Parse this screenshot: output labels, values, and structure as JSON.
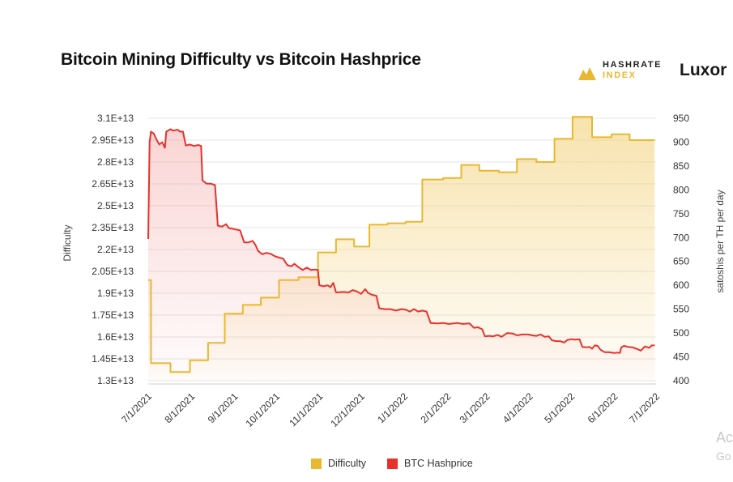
{
  "page": {
    "title": "Bitcoin Mining Difficulty vs Bitcoin Hashprice",
    "brand_line1": "HASHRATE",
    "brand_line2": "INDEX",
    "brand_logo": "hashrate-index-logo-icon",
    "brand_secondary": "Luxor",
    "watermark_line1": "Ac",
    "watermark_line2": "Go"
  },
  "chart_data": {
    "type": "line",
    "title": "Bitcoin Mining Difficulty vs Bitcoin Hashprice",
    "x_ticks": [
      "7/1/2021",
      "8/1/2021",
      "9/1/2021",
      "10/1/2021",
      "11/1/2021",
      "12/1/2021",
      "1/1/2022",
      "2/1/2022",
      "3/1/2022",
      "4/1/2022",
      "5/1/2022",
      "6/1/2022",
      "7/1/2022"
    ],
    "y_left": {
      "label": "Difficulty",
      "range": [
        13000000000000.0,
        31000000000000.0
      ],
      "ticks": [
        "1.3E+13",
        "1.45E+13",
        "1.6E+13",
        "1.75E+13",
        "1.9E+13",
        "2.05E+13",
        "2.2E+13",
        "2.35E+13",
        "2.5E+13",
        "2.65E+13",
        "2.8E+13",
        "2.95E+13",
        "3.1E+13"
      ]
    },
    "y_right": {
      "label": "satoshis per TH per day",
      "range": [
        400,
        950
      ],
      "ticks": [
        "400",
        "450",
        "500",
        "550",
        "600",
        "650",
        "700",
        "750",
        "800",
        "850",
        "900",
        "950"
      ]
    },
    "grid": true,
    "legend_position": "bottom-center",
    "series": [
      {
        "name": "Difficulty",
        "axis": "left",
        "color": "#e9b831",
        "fill": "area",
        "step": true,
        "points": [
          [
            "2021-06-30",
            19900000000000.0
          ],
          [
            "2021-07-03",
            14200000000000.0
          ],
          [
            "2021-07-17",
            13600000000000.0
          ],
          [
            "2021-07-31",
            14400000000000.0
          ],
          [
            "2021-08-13",
            15600000000000.0
          ],
          [
            "2021-08-25",
            17600000000000.0
          ],
          [
            "2021-09-07",
            18200000000000.0
          ],
          [
            "2021-09-20",
            18700000000000.0
          ],
          [
            "2021-10-03",
            19900000000000.0
          ],
          [
            "2021-10-17",
            20100000000000.0
          ],
          [
            "2021-10-31",
            21800000000000.0
          ],
          [
            "2021-11-13",
            22700000000000.0
          ],
          [
            "2021-11-26",
            22200000000000.0
          ],
          [
            "2021-12-07",
            23700000000000.0
          ],
          [
            "2021-12-20",
            23800000000000.0
          ],
          [
            "2022-01-02",
            23900000000000.0
          ],
          [
            "2022-01-14",
            26800000000000.0
          ],
          [
            "2022-01-29",
            26900000000000.0
          ],
          [
            "2022-02-11",
            27800000000000.0
          ],
          [
            "2022-02-24",
            27400000000000.0
          ],
          [
            "2022-03-10",
            27300000000000.0
          ],
          [
            "2022-03-23",
            28200000000000.0
          ],
          [
            "2022-04-06",
            28000000000000.0
          ],
          [
            "2022-04-19",
            29600000000000.0
          ],
          [
            "2022-05-02",
            31100000000000.0
          ],
          [
            "2022-05-16",
            29700000000000.0
          ],
          [
            "2022-05-30",
            29900000000000.0
          ],
          [
            "2022-06-12",
            29500000000000.0
          ],
          [
            "2022-06-30",
            29500000000000.0
          ]
        ]
      },
      {
        "name": "BTC Hashprice",
        "axis": "right",
        "color": "#e8312c",
        "fill": "area",
        "step": false,
        "points": [
          [
            "2021-06-30",
            697
          ],
          [
            "2021-07-01",
            697
          ],
          [
            "2021-07-02",
            900
          ],
          [
            "2021-07-03",
            922
          ],
          [
            "2021-07-05",
            918
          ],
          [
            "2021-07-07",
            905
          ],
          [
            "2021-07-09",
            895
          ],
          [
            "2021-07-11",
            900
          ],
          [
            "2021-07-13",
            888
          ],
          [
            "2021-07-14",
            922
          ],
          [
            "2021-07-17",
            927
          ],
          [
            "2021-07-19",
            924
          ],
          [
            "2021-07-22",
            926
          ],
          [
            "2021-07-24",
            922
          ],
          [
            "2021-07-26",
            922
          ],
          [
            "2021-07-28",
            893
          ],
          [
            "2021-07-31",
            895
          ],
          [
            "2021-08-03",
            892
          ],
          [
            "2021-08-06",
            894
          ],
          [
            "2021-08-08",
            892
          ],
          [
            "2021-08-09",
            820
          ],
          [
            "2021-08-12",
            813
          ],
          [
            "2021-08-15",
            813
          ],
          [
            "2021-08-18",
            810
          ],
          [
            "2021-08-20",
            725
          ],
          [
            "2021-08-23",
            723
          ],
          [
            "2021-08-26",
            728
          ],
          [
            "2021-08-28",
            720
          ],
          [
            "2021-09-02",
            717
          ],
          [
            "2021-09-05",
            715
          ],
          [
            "2021-09-08",
            690
          ],
          [
            "2021-09-11",
            690
          ],
          [
            "2021-09-14",
            693
          ],
          [
            "2021-09-16",
            685
          ],
          [
            "2021-09-18",
            672
          ],
          [
            "2021-09-21",
            665
          ],
          [
            "2021-09-24",
            668
          ],
          [
            "2021-09-27",
            666
          ],
          [
            "2021-09-30",
            661
          ],
          [
            "2021-10-03",
            658
          ],
          [
            "2021-10-06",
            656
          ],
          [
            "2021-10-09",
            642
          ],
          [
            "2021-10-12",
            640
          ],
          [
            "2021-10-14",
            645
          ],
          [
            "2021-10-17",
            638
          ],
          [
            "2021-10-20",
            632
          ],
          [
            "2021-10-23",
            637
          ],
          [
            "2021-10-26",
            632
          ],
          [
            "2021-10-29",
            633
          ],
          [
            "2021-10-31",
            632
          ],
          [
            "2021-11-01",
            600
          ],
          [
            "2021-11-04",
            598
          ],
          [
            "2021-11-07",
            600
          ],
          [
            "2021-11-09",
            596
          ],
          [
            "2021-11-11",
            605
          ],
          [
            "2021-11-13",
            585
          ],
          [
            "2021-11-18",
            586
          ],
          [
            "2021-11-22",
            585
          ],
          [
            "2021-11-25",
            590
          ],
          [
            "2021-11-28",
            587
          ],
          [
            "2021-12-01",
            582
          ],
          [
            "2021-12-04",
            592
          ],
          [
            "2021-12-06",
            584
          ],
          [
            "2021-12-09",
            580
          ],
          [
            "2021-12-12",
            578
          ],
          [
            "2021-12-14",
            552
          ],
          [
            "2021-12-18",
            550
          ],
          [
            "2021-12-22",
            550
          ],
          [
            "2021-12-26",
            547
          ],
          [
            "2021-12-30",
            550
          ],
          [
            "2022-01-02",
            549
          ],
          [
            "2022-01-05",
            545
          ],
          [
            "2022-01-08",
            550
          ],
          [
            "2022-01-11",
            545
          ],
          [
            "2022-01-14",
            547
          ],
          [
            "2022-01-17",
            545
          ],
          [
            "2022-01-20",
            521
          ],
          [
            "2022-01-25",
            520
          ],
          [
            "2022-01-29",
            521
          ],
          [
            "2022-02-02",
            519
          ],
          [
            "2022-02-08",
            521
          ],
          [
            "2022-02-12",
            519
          ],
          [
            "2022-02-17",
            520
          ],
          [
            "2022-02-20",
            511
          ],
          [
            "2022-02-23",
            512
          ],
          [
            "2022-02-26",
            508
          ],
          [
            "2022-02-28",
            493
          ],
          [
            "2022-03-03",
            494
          ],
          [
            "2022-03-06",
            493
          ],
          [
            "2022-03-09",
            496
          ],
          [
            "2022-03-12",
            492
          ],
          [
            "2022-03-16",
            500
          ],
          [
            "2022-03-20",
            499
          ],
          [
            "2022-03-23",
            495
          ],
          [
            "2022-03-27",
            497
          ],
          [
            "2022-03-31",
            497
          ],
          [
            "2022-04-03",
            495
          ],
          [
            "2022-04-06",
            494
          ],
          [
            "2022-04-09",
            497
          ],
          [
            "2022-04-12",
            492
          ],
          [
            "2022-04-15",
            493
          ],
          [
            "2022-04-17",
            485
          ],
          [
            "2022-04-20",
            483
          ],
          [
            "2022-04-23",
            483
          ],
          [
            "2022-04-26",
            480
          ],
          [
            "2022-04-28",
            485
          ],
          [
            "2022-05-01",
            487
          ],
          [
            "2022-05-04",
            486
          ],
          [
            "2022-05-07",
            487
          ],
          [
            "2022-05-09",
            471
          ],
          [
            "2022-05-12",
            470
          ],
          [
            "2022-05-14",
            471
          ],
          [
            "2022-05-16",
            467
          ],
          [
            "2022-05-18",
            474
          ],
          [
            "2022-05-20",
            473
          ],
          [
            "2022-05-22",
            465
          ],
          [
            "2022-05-25",
            460
          ],
          [
            "2022-05-28",
            460
          ],
          [
            "2022-06-01",
            458
          ],
          [
            "2022-06-03",
            459
          ],
          [
            "2022-06-05",
            458
          ],
          [
            "2022-06-06",
            470
          ],
          [
            "2022-06-08",
            473
          ],
          [
            "2022-06-11",
            471
          ],
          [
            "2022-06-14",
            470
          ],
          [
            "2022-06-17",
            467
          ],
          [
            "2022-06-20",
            463
          ],
          [
            "2022-06-23",
            472
          ],
          [
            "2022-06-26",
            469
          ],
          [
            "2022-06-28",
            474
          ],
          [
            "2022-06-30",
            474
          ]
        ]
      }
    ]
  }
}
